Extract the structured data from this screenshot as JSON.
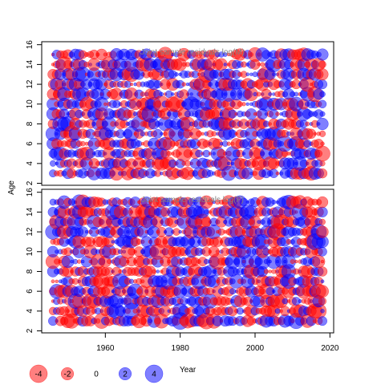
{
  "chart_data": {
    "type": "scatter",
    "subtype": "bubble",
    "ylabel": "Age",
    "xlabel": "",
    "x_ticks": [
      1960,
      1980,
      2000,
      2020
    ],
    "x_range": [
      1943,
      2021
    ],
    "y_ticks": [
      2,
      4,
      6,
      8,
      10,
      12,
      14,
      16
    ],
    "y_range": [
      1.8,
      16.3
    ],
    "years": [
      1946,
      2018
    ],
    "ages": [
      3,
      15
    ],
    "colors": {
      "positive": "#0000ff",
      "negative": "#ff0000",
      "axis": "#000000",
      "title": "#808080"
    },
    "legend": {
      "title": "Year",
      "values": [
        -4,
        -2,
        0,
        2,
        4
      ],
      "labels": [
        "-4",
        "-2",
        "0",
        "2",
        "4"
      ]
    },
    "panels": [
      {
        "id": "M",
        "title": "Joint sample residuals log(M)",
        "seed": 12345
      },
      {
        "id": "F",
        "title": "Joint sample residuals log(F)",
        "seed": 67891
      }
    ]
  }
}
